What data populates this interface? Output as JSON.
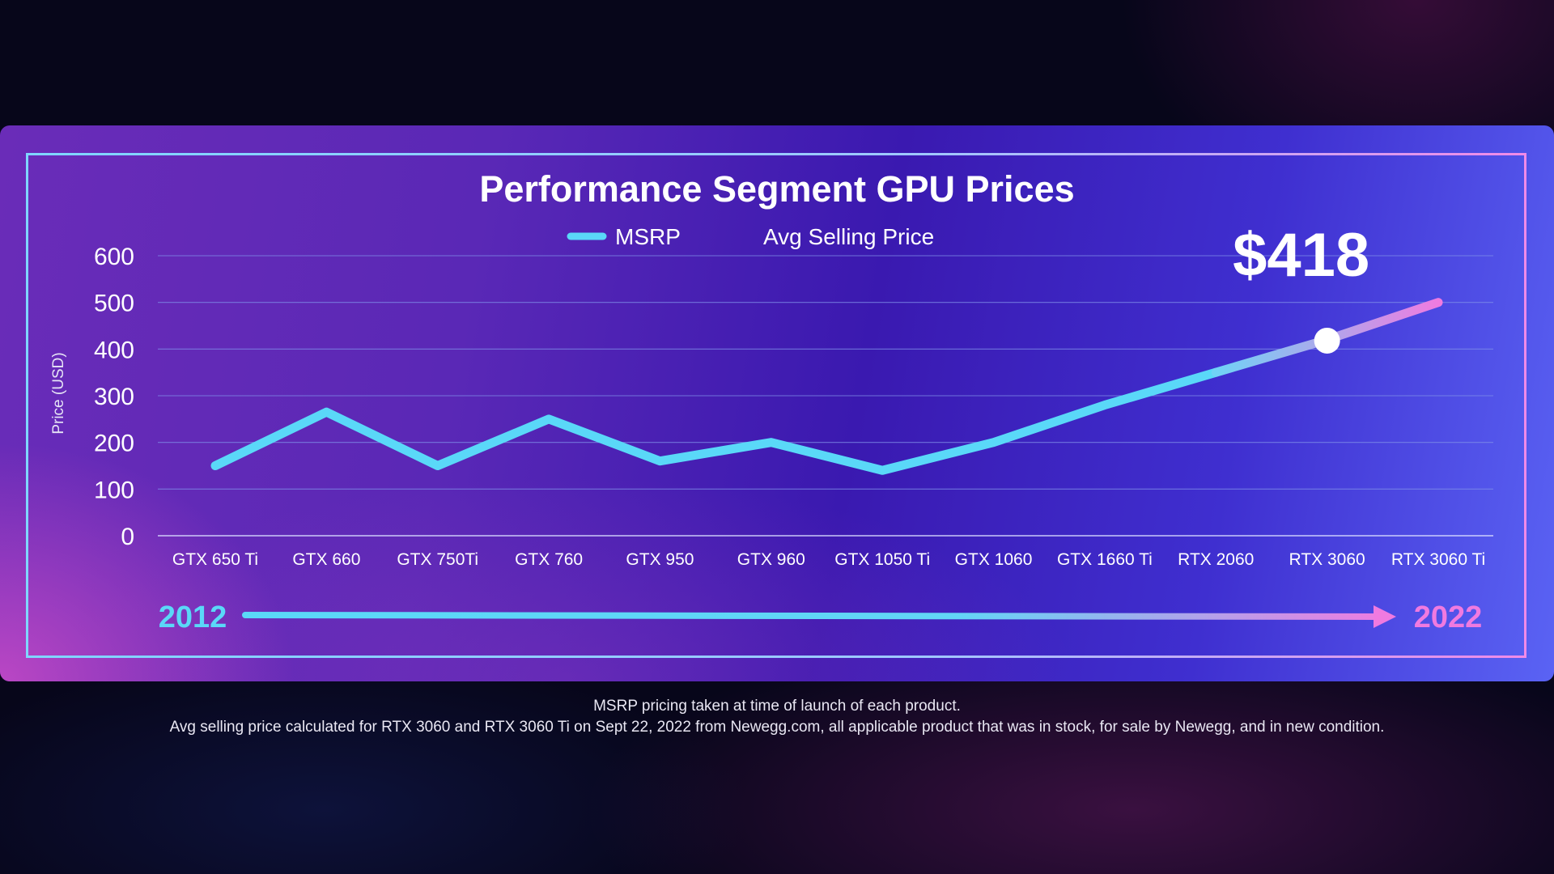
{
  "chart_data": {
    "type": "line",
    "title": "Performance Segment GPU Prices",
    "ylabel": "Price (USD)",
    "ylim": [
      0,
      600
    ],
    "yticks": [
      "0",
      "100",
      "200",
      "300",
      "400",
      "500",
      "600"
    ],
    "grid": true,
    "legend_position": "top-center",
    "categories": [
      "GTX 650 Ti",
      "GTX 660",
      "GTX 750Ti",
      "GTX 760",
      "GTX 950",
      "GTX 960",
      "GTX 1050 Ti",
      "GTX 1060",
      "GTX 1660 Ti",
      "RTX 2060",
      "RTX 3060",
      "RTX 3060 Ti"
    ],
    "series": [
      {
        "name": "MSRP",
        "color": "#5ad8f8",
        "values": [
          150,
          265,
          150,
          250,
          160,
          200,
          140,
          200,
          280,
          350,
          420,
          500
        ]
      },
      {
        "name": "Avg Selling Price",
        "color": "#f07ae0",
        "values": [
          null,
          null,
          null,
          null,
          null,
          null,
          null,
          null,
          null,
          null,
          418,
          500
        ]
      }
    ],
    "annotation": {
      "text": "$418",
      "category": "RTX 3060",
      "value": 418
    },
    "timeline": {
      "start": "2012",
      "end": "2022"
    }
  },
  "footnotes": {
    "line1": "MSRP pricing taken at time of launch of each product.",
    "line2": "Avg selling price calculated for RTX 3060 and RTX 3060 Ti on Sept 22, 2022 from Newegg.com, all applicable product that was in stock, for sale by Newegg, and in new condition."
  },
  "colors": {
    "msrp": "#5ad8f8",
    "asp": "#f07ae0",
    "grid": "#7f8fe8",
    "text": "#ffffff"
  }
}
